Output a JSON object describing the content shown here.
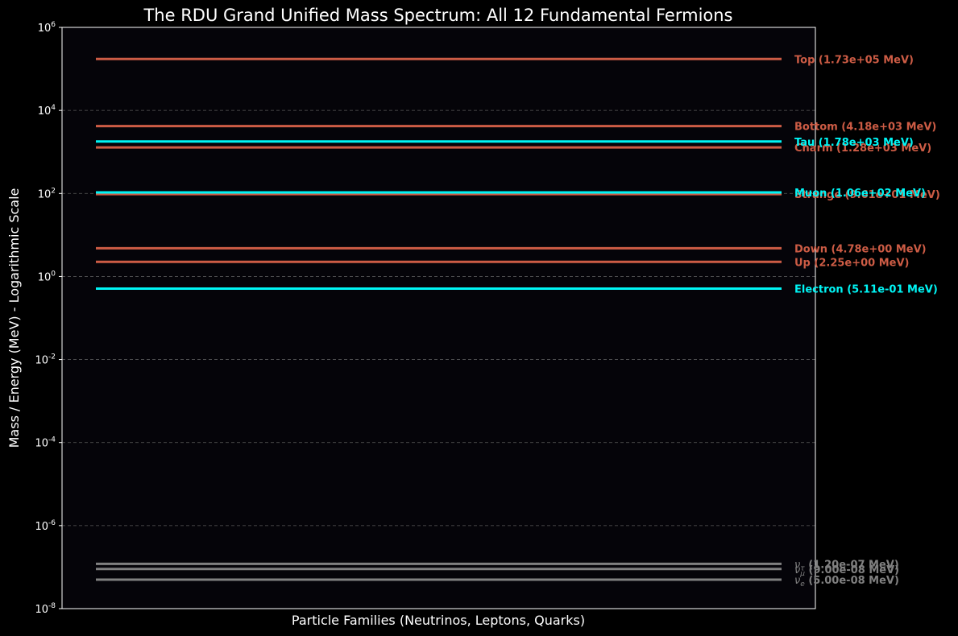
{
  "chart_data": {
    "type": "line",
    "title": "The RDU Grand Unified Mass Spectrum: All 12 Fundamental Fermions",
    "xlabel": "Particle Families (Neutrinos, Leptons, Quarks)",
    "ylabel": "Mass / Energy (MeV) - Logarithmic Scale",
    "yscale": "log",
    "ylim": [
      1e-08,
      1000000.0
    ],
    "yticks": [
      {
        "base": "10",
        "exp": "-8",
        "value": 1e-08
      },
      {
        "base": "10",
        "exp": "-6",
        "value": 1e-06
      },
      {
        "base": "10",
        "exp": "-4",
        "value": 0.0001
      },
      {
        "base": "10",
        "exp": "-2",
        "value": 0.01
      },
      {
        "base": "10",
        "exp": "0",
        "value": 1
      },
      {
        "base": "10",
        "exp": "2",
        "value": 100.0
      },
      {
        "base": "10",
        "exp": "4",
        "value": 10000.0
      },
      {
        "base": "10",
        "exp": "6",
        "value": 1000000.0
      }
    ],
    "grid": true,
    "background": "#000000",
    "plot_background": "#050409",
    "colors": {
      "quark": "#cd5c45",
      "lepton": "#00f5f5",
      "neutrino": "#808080"
    },
    "series": [
      {
        "name": "Top",
        "family": "quark",
        "value": 173000,
        "label": "Top (1.73e+05 MeV)"
      },
      {
        "name": "Bottom",
        "family": "quark",
        "value": 4180,
        "label": "Bottom (4.18e+03 MeV)"
      },
      {
        "name": "Charm",
        "family": "quark",
        "value": 1280,
        "label": "Charm (1.28e+03 MeV)"
      },
      {
        "name": "Strange",
        "family": "quark",
        "value": 96.1,
        "label": "Strange (9.61e+01 MeV)"
      },
      {
        "name": "Down",
        "family": "quark",
        "value": 4.78,
        "label": "Down (4.78e+00 MeV)"
      },
      {
        "name": "Up",
        "family": "quark",
        "value": 2.25,
        "label": "Up (2.25e+00 MeV)"
      },
      {
        "name": "Tau",
        "family": "lepton",
        "value": 1780,
        "label": "Tau (1.78e+03 MeV)"
      },
      {
        "name": "Muon",
        "family": "lepton",
        "value": 106,
        "label": "Muon (1.06e+02 MeV)"
      },
      {
        "name": "Electron",
        "family": "lepton",
        "value": 0.511,
        "label": "Electron (5.11e-01 MeV)"
      },
      {
        "name": "ν_τ",
        "family": "neutrino",
        "value": 1.2e-07,
        "symbol": "ν",
        "sub": "τ",
        "label": "(1.20e-07 MeV)"
      },
      {
        "name": "ν_μ",
        "family": "neutrino",
        "value": 9e-08,
        "symbol": "ν",
        "sub": "μ",
        "label": "(9.00e-08 MeV)"
      },
      {
        "name": "ν_e",
        "family": "neutrino",
        "value": 5e-08,
        "symbol": "ν",
        "sub": "e",
        "label": "(5.00e-08 MeV)"
      }
    ]
  }
}
